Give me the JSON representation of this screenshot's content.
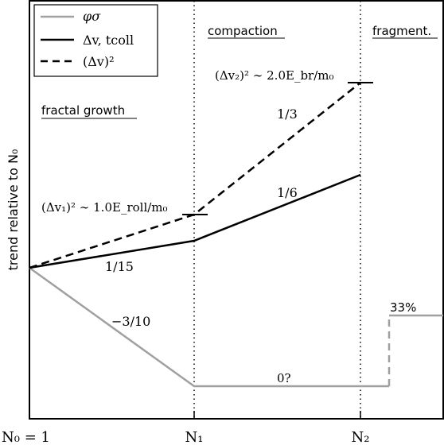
{
  "legend": {
    "items": [
      {
        "label": "φσ",
        "style": "solid",
        "color": "#a0a0a0"
      },
      {
        "label": "Δv, tcoll",
        "style": "solid",
        "color": "#000000"
      },
      {
        "label": "(Δv)²",
        "style": "dashed",
        "color": "#000000"
      }
    ]
  },
  "regions": {
    "fractal": "fractal growth",
    "compaction": "compaction",
    "fragmentation": "fragment."
  },
  "yaxis_label": "trend relative to N₀",
  "xticks": {
    "n0": "N₀ = 1",
    "n1": "N₁",
    "n2": "N₂"
  },
  "annotations": {
    "dv1": "(Δv₁)² ∼ 1.0E_roll/m₀",
    "dv2": "(Δv₂)² ∼ 2.0E_br/m₀",
    "slope_1_15": "1/15",
    "slope_m3_10": "−3/10",
    "slope_1_6": "1/6",
    "slope_1_3": "1/3",
    "zero": "0?",
    "pct33": "33%"
  },
  "colors": {
    "gray": "#a0a0a0",
    "black": "#000000"
  }
}
